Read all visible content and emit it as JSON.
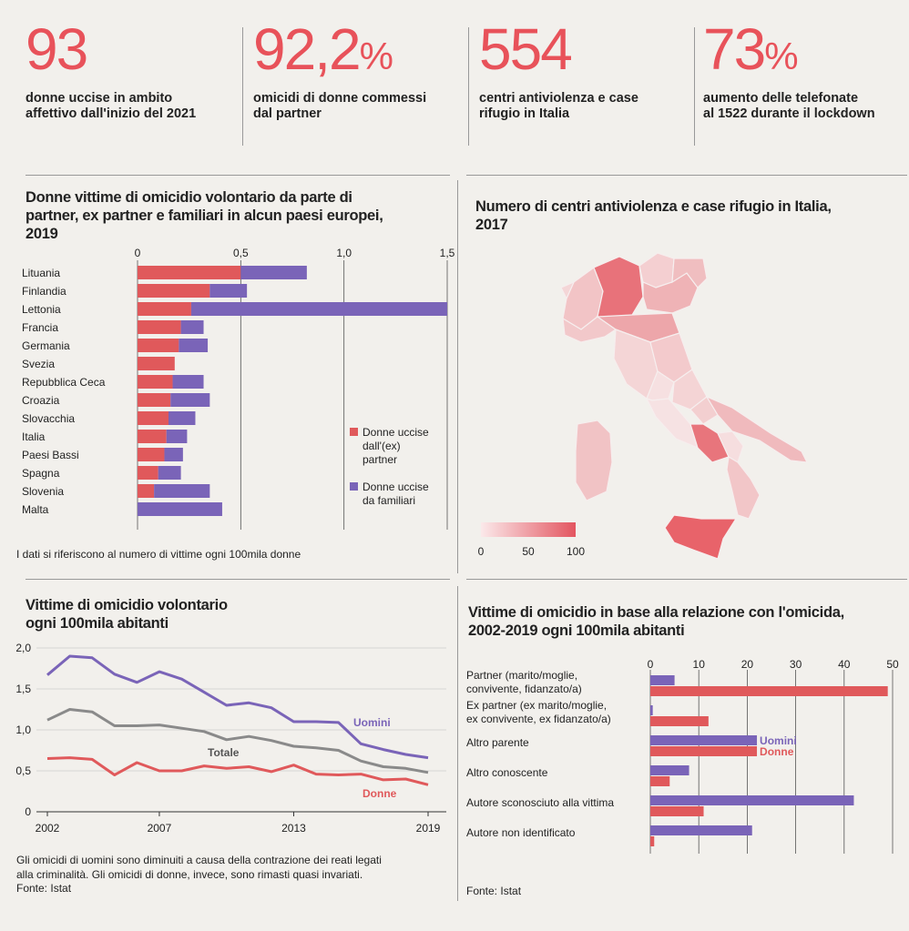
{
  "stats": [
    {
      "value": "93",
      "pct": "",
      "label_lines": [
        "donne uccise in ambito",
        "affettivo dall'inizio del 2021"
      ]
    },
    {
      "value": "92,2",
      "pct": "%",
      "label_lines": [
        "omicidi di donne commessi",
        "dal partner"
      ]
    },
    {
      "value": "554",
      "pct": "",
      "label_lines": [
        "centri antiviolenza e case",
        "rifugio in Italia"
      ]
    },
    {
      "value": "73",
      "pct": "%",
      "label_lines": [
        "aumento delle telefonate",
        "al 1522 durante il lockdown"
      ]
    }
  ],
  "bar_panel": {
    "title_lines": [
      "Donne vittime di omicidio volontario da parte di",
      "partner, ex partner e familiari in alcun paesi europei,",
      "2019"
    ],
    "note": "I dati si riferiscono al numero di vittime ogni 100mila donne"
  },
  "map_panel": {
    "title_lines": [
      "Numero di centri antiviolenza e case rifugio in Italia,",
      "2017"
    ],
    "scale_ticks": [
      "0",
      "50",
      "100"
    ]
  },
  "line_panel": {
    "title_lines": [
      "Vittime di omicidio volontario",
      "ogni 100mila abitanti"
    ],
    "note_lines": [
      "Gli omicidi di uomini sono diminuiti a causa della contrazione dei reati legati",
      "alla criminalità. Gli omicidi di donne, invece, sono rimasti quasi invariati."
    ],
    "source": "Fonte: Istat"
  },
  "rel_panel": {
    "title_lines": [
      "Vittime di omicidio in base alla relazione con l'omicida,",
      "2002-2019 ogni 100mila abitanti"
    ],
    "source": "Fonte: Istat"
  },
  "colors": {
    "accent": "#e8525a",
    "donne": "#e0595b",
    "uomini": "#7a64b8",
    "totale": "#8a8a8a",
    "text": "#222222"
  },
  "chart_data": [
    {
      "type": "bar",
      "stacked": true,
      "orientation": "horizontal",
      "categories": [
        "Lituania",
        "Finlandia",
        "Lettonia",
        "Francia",
        "Germania",
        "Svezia",
        "Repubblica Ceca",
        "Croazia",
        "Slovacchia",
        "Italia",
        "Paesi Bassi",
        "Spagna",
        "Slovenia",
        "Malta"
      ],
      "series": [
        {
          "name": "Donne uccise dall'(ex) partner",
          "values": [
            0.5,
            0.35,
            0.26,
            0.21,
            0.2,
            0.18,
            0.17,
            0.16,
            0.15,
            0.14,
            0.13,
            0.1,
            0.08,
            0
          ]
        },
        {
          "name": "Donne uccise da familiari",
          "values": [
            0.32,
            0.18,
            1.24,
            0.11,
            0.14,
            0,
            0.15,
            0.19,
            0.13,
            0.1,
            0.09,
            0.11,
            0.27,
            0.41
          ]
        }
      ],
      "xticks": [
        "0",
        "0,5",
        "1,0",
        "1,5"
      ],
      "xlim": [
        0,
        1.5
      ],
      "legend": "right"
    },
    {
      "type": "line",
      "x": [
        2002,
        2003,
        2004,
        2005,
        2006,
        2007,
        2008,
        2009,
        2010,
        2011,
        2012,
        2013,
        2014,
        2015,
        2016,
        2017,
        2018,
        2019
      ],
      "series": [
        {
          "name": "Uomini",
          "values": [
            1.67,
            1.9,
            1.88,
            1.68,
            1.58,
            1.71,
            1.62,
            1.46,
            1.3,
            1.33,
            1.27,
            1.1,
            1.1,
            1.09,
            0.83,
            0.76,
            0.7,
            0.66
          ]
        },
        {
          "name": "Totale",
          "values": [
            1.12,
            1.25,
            1.22,
            1.05,
            1.05,
            1.06,
            1.02,
            0.98,
            0.88,
            0.92,
            0.87,
            0.8,
            0.78,
            0.75,
            0.62,
            0.55,
            0.53,
            0.48
          ]
        },
        {
          "name": "Donne",
          "values": [
            0.65,
            0.66,
            0.64,
            0.45,
            0.6,
            0.5,
            0.5,
            0.56,
            0.53,
            0.55,
            0.49,
            0.57,
            0.46,
            0.45,
            0.46,
            0.39,
            0.4,
            0.33
          ]
        }
      ],
      "xticks": [
        "2002",
        "2007",
        "2013",
        "2019"
      ],
      "yticks": [
        "0",
        "0,5",
        "1,0",
        "1,5",
        "2,0"
      ],
      "ylim": [
        0,
        2
      ]
    },
    {
      "type": "bar",
      "orientation": "horizontal",
      "categories": [
        "Partner (marito/moglie, convivente, fidanzato/a)",
        "Ex partner (ex marito/moglie, ex convivente, ex fidanzato/a)",
        "Altro parente",
        "Altro conoscente",
        "Autore sconosciuto alla vittima",
        "Autore non identificato"
      ],
      "category_lines": [
        [
          "Partner (marito/moglie,",
          "convivente, fidanzato/a)"
        ],
        [
          "Ex partner (ex marito/moglie,",
          "ex convivente, ex fidanzato/a)"
        ],
        [
          "Altro parente"
        ],
        [
          "Altro conoscente"
        ],
        [
          "Autore sconosciuto alla vittima"
        ],
        [
          "Autore non identificato"
        ]
      ],
      "series": [
        {
          "name": "Uomini",
          "values": [
            5,
            0.5,
            22,
            8,
            42,
            21
          ]
        },
        {
          "name": "Donne",
          "values": [
            49,
            12,
            22,
            4,
            11,
            0.8
          ]
        }
      ],
      "xticks": [
        "0",
        "10",
        "20",
        "30",
        "40",
        "50"
      ],
      "xlim": [
        0,
        50
      ]
    }
  ]
}
